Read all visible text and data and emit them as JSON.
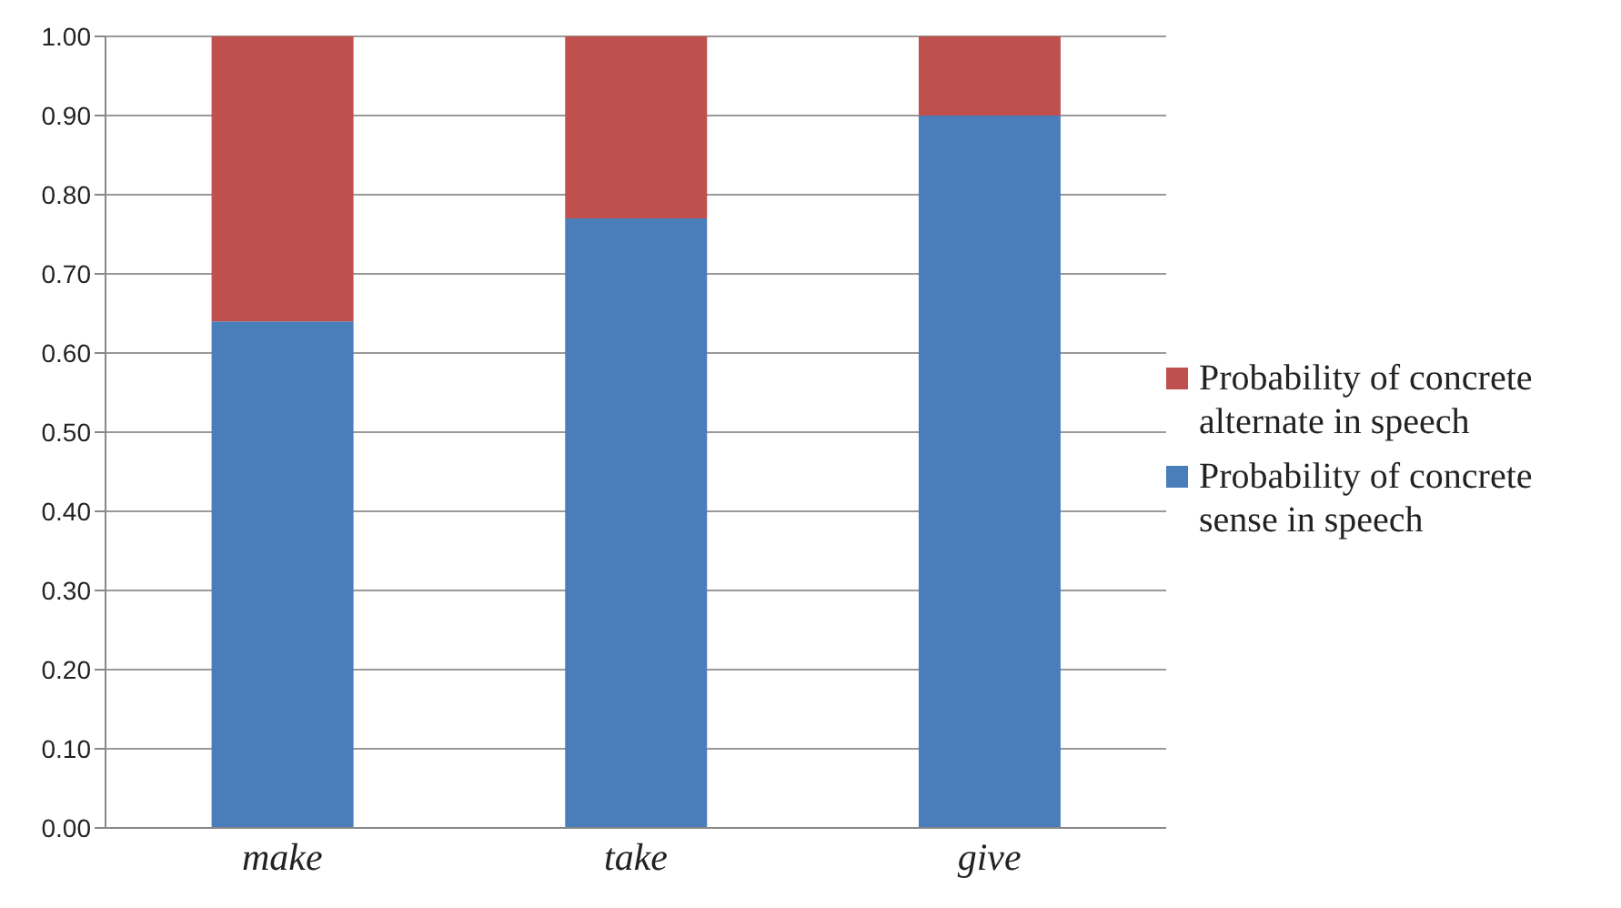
{
  "chart_data": {
    "type": "bar",
    "stacked": true,
    "categories": [
      "make",
      "take",
      "give"
    ],
    "series": [
      {
        "name": "Probability of concrete sense in speech",
        "color": "#4a7ebb",
        "values": [
          0.64,
          0.77,
          0.9
        ]
      },
      {
        "name": "Probability of concrete alternate in speech",
        "color": "#c0504d",
        "values": [
          0.36,
          0.23,
          0.1
        ]
      }
    ],
    "ylim": [
      0,
      1
    ],
    "yticks": [
      {
        "value": 0,
        "label": "0.00"
      },
      {
        "value": 0.1,
        "label": "0.10"
      },
      {
        "value": 0.2,
        "label": "0.20"
      },
      {
        "value": 0.3,
        "label": "0.30"
      },
      {
        "value": 0.4,
        "label": "0.40"
      },
      {
        "value": 0.5,
        "label": "0.50"
      },
      {
        "value": 0.6,
        "label": "0.60"
      },
      {
        "value": 0.7,
        "label": "0.70"
      },
      {
        "value": 0.8,
        "label": "0.80"
      },
      {
        "value": 0.9,
        "label": "0.90"
      },
      {
        "value": 1,
        "label": "1.00"
      }
    ],
    "grid": "y",
    "legend": "right"
  }
}
